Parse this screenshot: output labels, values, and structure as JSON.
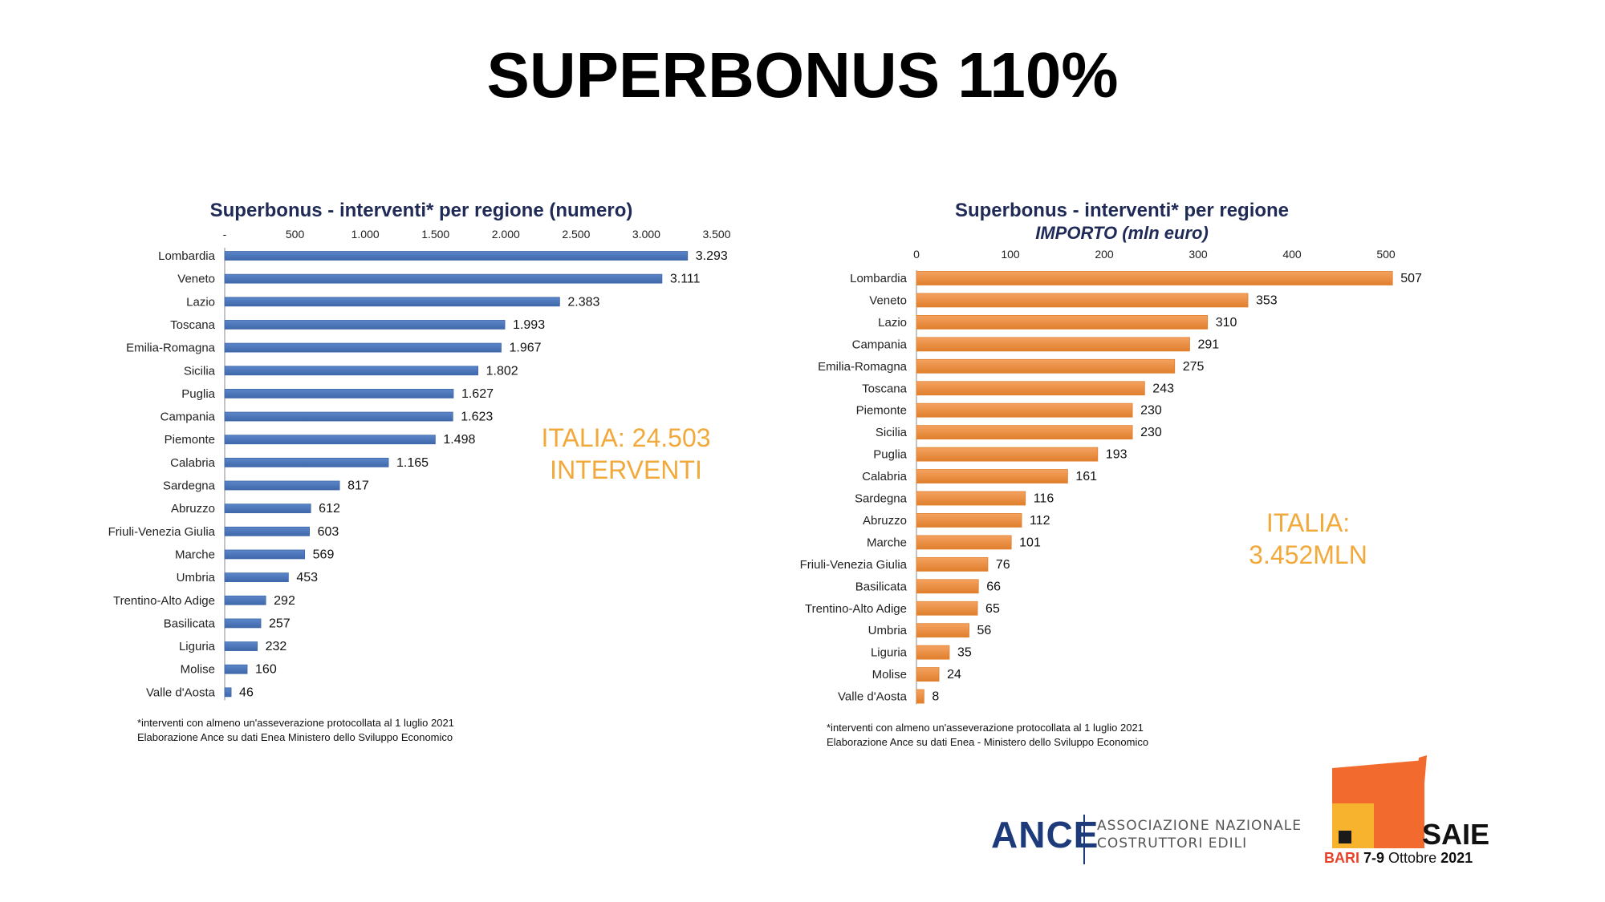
{
  "slide": {
    "title": "SUPERBONUS 110%"
  },
  "colors": {
    "blue_bar": "#5b86c8",
    "blue_bar_dark": "#3f68ab",
    "orange_bar": "#f4a261",
    "orange_bar_dark": "#e07f2c",
    "total_text": "#f2a93b",
    "title_navy": "#1f2a57"
  },
  "chart_data": [
    {
      "type": "bar",
      "orientation": "horizontal",
      "title": "Superbonus - interventi* per regione (numero)",
      "xlim": [
        0,
        3500
      ],
      "xticks": [
        "-",
        "500",
        "1.000",
        "1.500",
        "2.000",
        "2.500",
        "3.000",
        "3.500"
      ],
      "grid": false,
      "categories": [
        "Lombardia",
        "Veneto",
        "Lazio",
        "Toscana",
        "Emilia-Romagna",
        "Sicilia",
        "Puglia",
        "Campania",
        "Piemonte",
        "Calabria",
        "Sardegna",
        "Abruzzo",
        "Friuli-Venezia Giulia",
        "Marche",
        "Umbria",
        "Trentino-Alto Adige",
        "Basilicata",
        "Liguria",
        "Molise",
        "Valle d'Aosta"
      ],
      "values": [
        3293,
        3111,
        2383,
        1993,
        1967,
        1802,
        1627,
        1623,
        1498,
        1165,
        817,
        612,
        603,
        569,
        453,
        292,
        257,
        232,
        160,
        46
      ],
      "value_labels": [
        "3.293",
        "3.111",
        "2.383",
        "1.993",
        "1.967",
        "1.802",
        "1.627",
        "1.623",
        "1.498",
        "1.165",
        "817",
        "612",
        "603",
        "569",
        "453",
        "292",
        "257",
        "232",
        "160",
        "46"
      ],
      "footnotes": [
        "*interventi con almeno un'asseverazione protocollata al 1 luglio 2021",
        "Elaborazione Ance su dati Enea   Ministero dello Sviluppo Economico"
      ]
    },
    {
      "type": "bar",
      "orientation": "horizontal",
      "title": "Superbonus - interventi* per regione",
      "subtitle": "IMPORTO  (mln euro)",
      "xlim": [
        0,
        500
      ],
      "xticks": [
        "0",
        "100",
        "200",
        "300",
        "400",
        "500"
      ],
      "grid": false,
      "categories": [
        "Lombardia",
        "Veneto",
        "Lazio",
        "Campania",
        "Emilia-Romagna",
        "Toscana",
        "Piemonte",
        "Sicilia",
        "Puglia",
        "Calabria",
        "Sardegna",
        "Abruzzo",
        "Marche",
        "Friuli-Venezia Giulia",
        "Basilicata",
        "Trentino-Alto Adige",
        "Umbria",
        "Liguria",
        "Molise",
        "Valle d'Aosta"
      ],
      "values": [
        507,
        353,
        310,
        291,
        275,
        243,
        230,
        230,
        193,
        161,
        116,
        112,
        101,
        76,
        66,
        65,
        56,
        35,
        24,
        8
      ],
      "value_labels": [
        "507",
        "353",
        "310",
        "291",
        "275",
        "243",
        "230",
        "230",
        "193",
        "161",
        "116",
        "112",
        "101",
        "76",
        "66",
        "65",
        "56",
        "35",
        "24",
        "8"
      ],
      "footnotes": [
        "*interventi con almeno un'asseverazione protocollata al 1 luglio 2021",
        "Elaborazione Ance su dati Enea - Ministero dello Sviluppo Economico"
      ]
    }
  ],
  "totals": {
    "left": {
      "line1": "ITALIA: 24.503",
      "line2": "INTERVENTI"
    },
    "right": {
      "line1": "ITALIA:",
      "line2": "3.452MLN"
    }
  },
  "logos": {
    "ance": {
      "word": "ANCE",
      "line1": "ASSOCIAZIONE NAZIONALE",
      "line2": "COSTRUTTORI EDILI"
    },
    "saie": {
      "word": "SAIE",
      "city": "BARI",
      "dates": "7-9",
      "month": "Ottobre",
      "year": "2021"
    }
  }
}
